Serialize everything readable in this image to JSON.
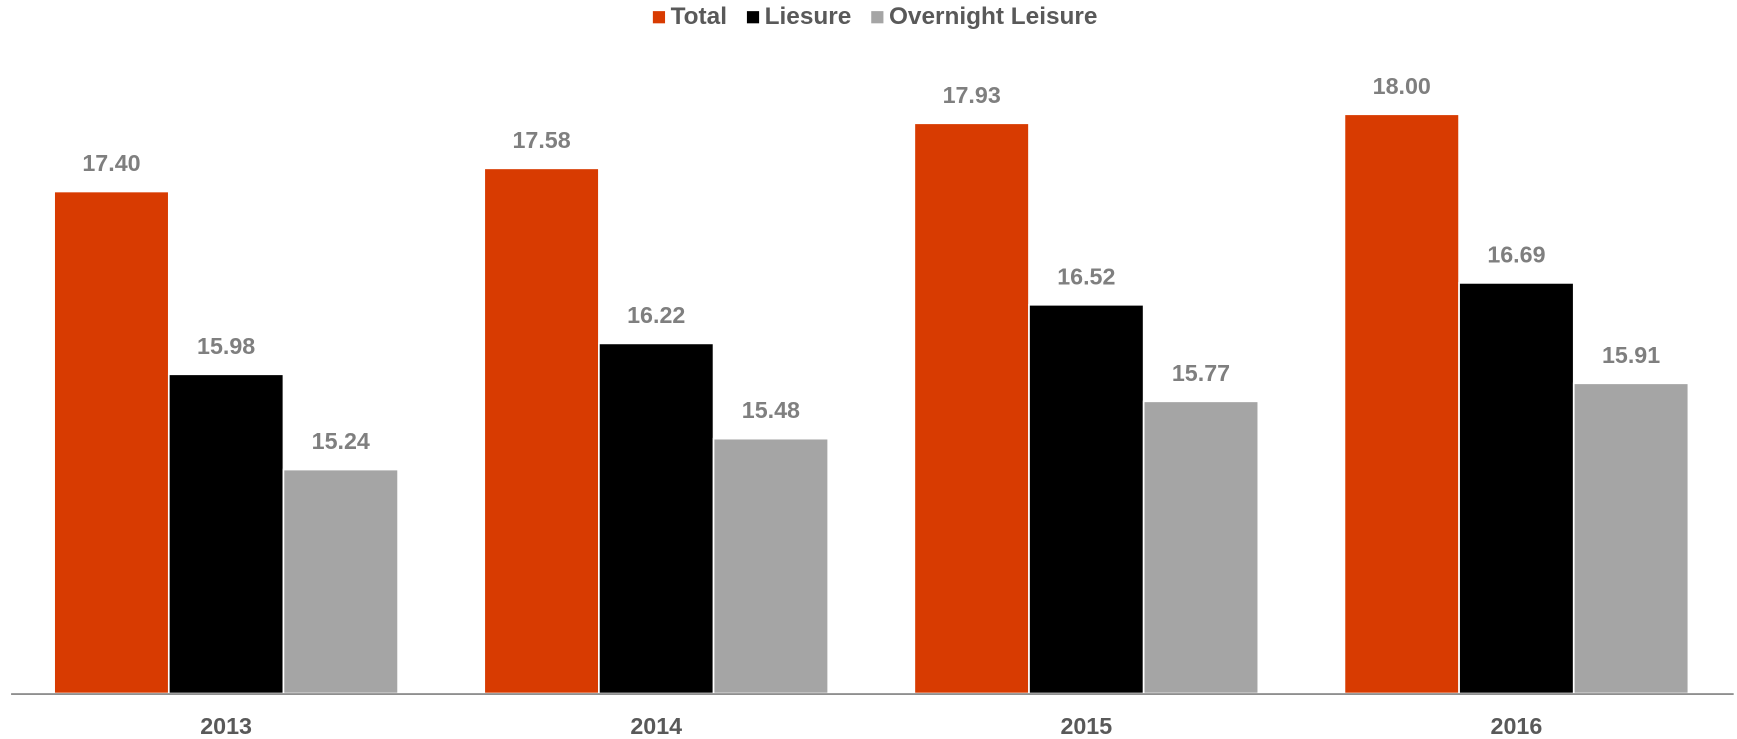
{
  "chart_data": {
    "type": "bar",
    "categories": [
      "2013",
      "2014",
      "2015",
      "2016"
    ],
    "series": [
      {
        "name": "Total",
        "color": "#d83b01",
        "values": [
          17.4,
          17.58,
          17.93,
          18.0
        ],
        "value_labels": [
          "17.40",
          "17.58",
          "17.93",
          "18.00"
        ]
      },
      {
        "name": "Liesure",
        "color": "#000000",
        "values": [
          15.98,
          16.22,
          16.52,
          16.69
        ],
        "value_labels": [
          "15.98",
          "16.22",
          "16.52",
          "16.69"
        ]
      },
      {
        "name": "Overnight Leisure",
        "color": "#a5a5a5",
        "values": [
          15.24,
          15.48,
          15.77,
          15.91
        ],
        "value_labels": [
          "15.24",
          "15.48",
          "15.77",
          "15.91"
        ]
      }
    ],
    "ylim": [
      13.5,
      18.5
    ],
    "legend": "top"
  }
}
